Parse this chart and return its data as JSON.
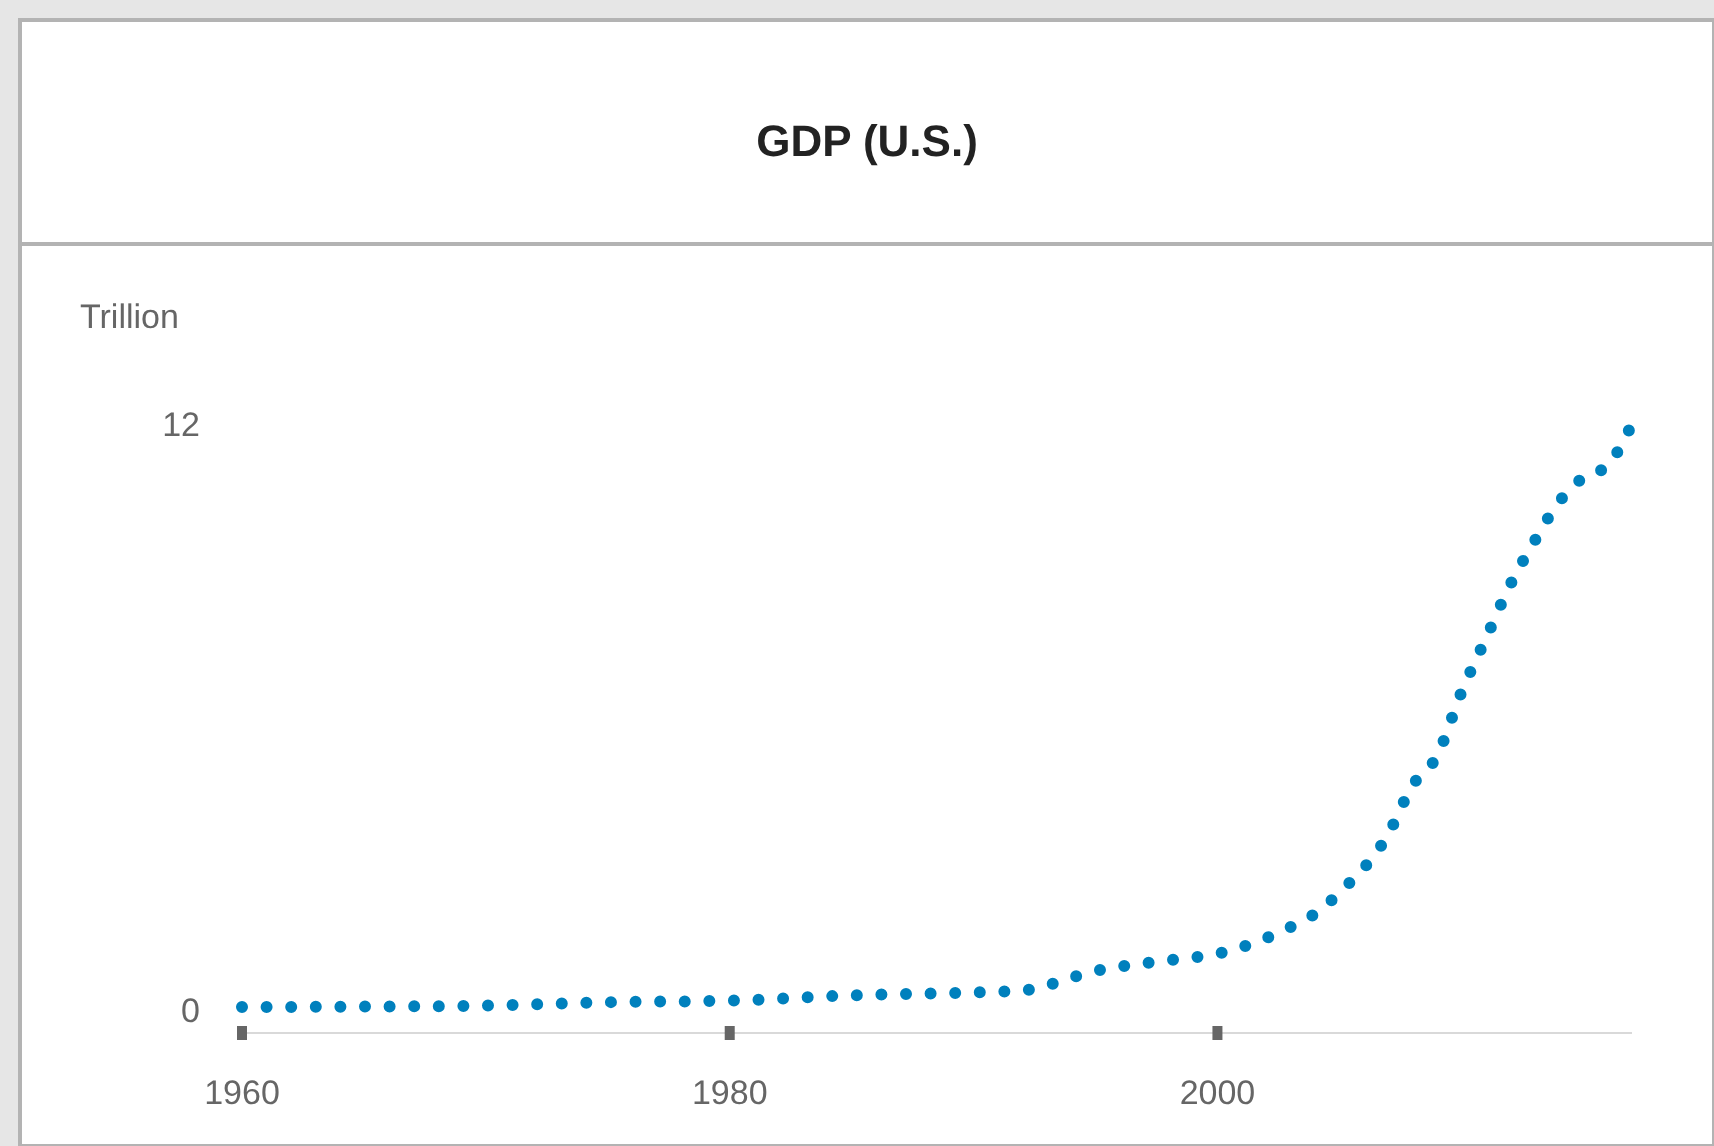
{
  "chart_data": {
    "type": "line",
    "title": "GDP (U.S.)",
    "ylabel": "Trillion",
    "x": [
      1960,
      1965,
      1970,
      1975,
      1980,
      1985,
      1990,
      1992,
      1995,
      1998,
      2000,
      2003,
      2004,
      2005,
      2007,
      2008,
      2009,
      2010,
      2011,
      2012,
      2013,
      2014,
      2015,
      2016,
      2017
    ],
    "series": [
      {
        "color": "#0080bd",
        "values": [
          0.06,
          0.07,
          0.09,
          0.16,
          0.19,
          0.3,
          0.36,
          0.4,
          0.8,
          1.02,
          1.15,
          1.7,
          1.97,
          2.4,
          3.6,
          4.6,
          5.2,
          6.5,
          7.6,
          8.7,
          9.6,
          10.4,
          10.9,
          11.15,
          12
        ]
      }
    ],
    "xlim": [
      1960,
      2017
    ],
    "xticks": [
      1960,
      1980,
      2000
    ],
    "ylim": [
      0,
      12
    ],
    "yticks": [
      0,
      12
    ],
    "grid": false,
    "marker": "none",
    "line_style": "dotted"
  }
}
